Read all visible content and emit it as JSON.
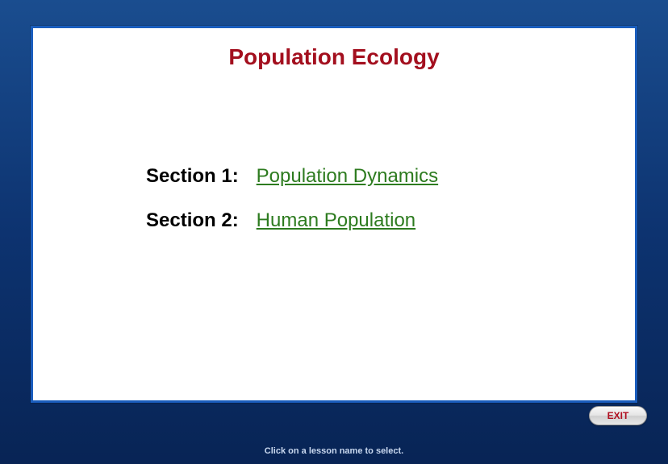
{
  "title": "Population Ecology",
  "title_color": "#a30f1e",
  "title_fontsize": 28,
  "sections": [
    {
      "label": "Section 1:",
      "link_text": "Population Dynamics"
    },
    {
      "label": "Section 2:",
      "link_text": "Human Population"
    }
  ],
  "section_label_color": "#000000",
  "section_link_color": "#2d7b1f",
  "section_fontsize": 24,
  "exit_label": "EXIT",
  "exit_text_color": "#b01020",
  "instruction_text": "Click on a lesson name to select.",
  "instruction_color": "#c9d8ef",
  "frame_gradient_top": "#1a4d8f",
  "frame_gradient_mid": "#0d3370",
  "frame_gradient_bottom": "#082455",
  "panel_border_color": "#1a5dbd",
  "panel_background": "#ffffff"
}
